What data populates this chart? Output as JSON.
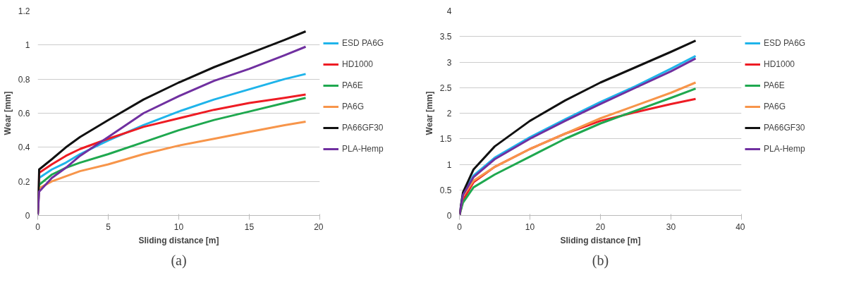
{
  "chart_data": [
    {
      "type": "line",
      "xlabel": "Sliding distance [m]",
      "ylabel": "Wear [mm]",
      "xlim": [
        0,
        20
      ],
      "xticks": [
        0,
        5,
        10,
        15,
        20
      ],
      "ylim": [
        0,
        1.2
      ],
      "yticks": [
        0,
        0.2,
        0.4,
        0.6,
        0.8,
        1,
        1.2
      ],
      "grid": "y",
      "legend": "right",
      "annotations": [
        "(a)"
      ],
      "x": [
        0,
        0.1,
        1,
        2,
        3,
        5,
        7.5,
        10,
        12.5,
        15,
        17.5,
        19
      ],
      "series": [
        {
          "name": "ESD PA6G",
          "color": "#1fb4ea",
          "values": [
            0,
            0.22,
            0.27,
            0.31,
            0.36,
            0.44,
            0.53,
            0.61,
            0.68,
            0.74,
            0.8,
            0.83
          ]
        },
        {
          "name": "HD1000",
          "color": "#ee1c24",
          "values": [
            0,
            0.25,
            0.3,
            0.35,
            0.39,
            0.45,
            0.52,
            0.57,
            0.62,
            0.66,
            0.69,
            0.71
          ]
        },
        {
          "name": "PA6E",
          "color": "#1fa84f",
          "values": [
            0,
            0.18,
            0.24,
            0.28,
            0.31,
            0.36,
            0.43,
            0.5,
            0.56,
            0.61,
            0.66,
            0.69
          ]
        },
        {
          "name": "PA6G",
          "color": "#f7954a",
          "values": [
            0,
            0.16,
            0.2,
            0.23,
            0.26,
            0.3,
            0.36,
            0.41,
            0.45,
            0.49,
            0.53,
            0.55
          ]
        },
        {
          "name": "PA66GF30",
          "color": "#111111",
          "values": [
            0,
            0.27,
            0.33,
            0.4,
            0.46,
            0.56,
            0.68,
            0.78,
            0.87,
            0.95,
            1.03,
            1.08
          ]
        },
        {
          "name": "PLA-Hemp",
          "color": "#7030a0",
          "values": [
            0,
            0.14,
            0.22,
            0.28,
            0.35,
            0.46,
            0.6,
            0.7,
            0.79,
            0.86,
            0.94,
            0.99
          ]
        }
      ]
    },
    {
      "type": "line",
      "xlabel": "Sliding distance [m]",
      "ylabel": "Wear [mm]",
      "xlim": [
        0,
        40
      ],
      "xticks": [
        0,
        10,
        20,
        30,
        40
      ],
      "ylim": [
        0,
        4
      ],
      "yticks": [
        0,
        0.5,
        1,
        1.5,
        2,
        2.5,
        3,
        3.5,
        4
      ],
      "grid": "y",
      "legend": "right",
      "annotations": [
        "(b)"
      ],
      "x": [
        0,
        0.5,
        2,
        5,
        10,
        15,
        20,
        25,
        30,
        33.5
      ],
      "series": [
        {
          "name": "ESD PA6G",
          "color": "#1fb4ea",
          "values": [
            0,
            0.42,
            0.78,
            1.13,
            1.53,
            1.88,
            2.22,
            2.53,
            2.87,
            3.12
          ]
        },
        {
          "name": "HD1000",
          "color": "#ee1c24",
          "values": [
            0,
            0.3,
            0.65,
            0.95,
            1.3,
            1.6,
            1.85,
            2.02,
            2.18,
            2.28
          ]
        },
        {
          "name": "PA6E",
          "color": "#1fa84f",
          "values": [
            0,
            0.25,
            0.55,
            0.8,
            1.15,
            1.5,
            1.8,
            2.05,
            2.3,
            2.48
          ]
        },
        {
          "name": "PA6G",
          "color": "#f7954a",
          "values": [
            0,
            0.38,
            0.68,
            0.95,
            1.3,
            1.6,
            1.9,
            2.15,
            2.4,
            2.6
          ]
        },
        {
          "name": "PA66GF30",
          "color": "#111111",
          "values": [
            0,
            0.45,
            0.9,
            1.35,
            1.85,
            2.25,
            2.6,
            2.9,
            3.2,
            3.42
          ]
        },
        {
          "name": "PLA-Hemp",
          "color": "#7030a0",
          "values": [
            0,
            0.4,
            0.75,
            1.1,
            1.5,
            1.85,
            2.18,
            2.5,
            2.82,
            3.07
          ]
        }
      ]
    }
  ]
}
